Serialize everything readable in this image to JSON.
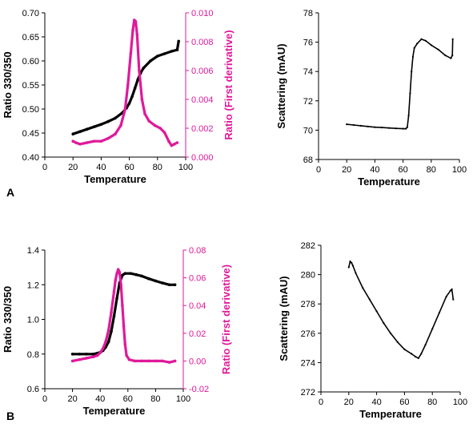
{
  "colors": {
    "primary": "#000000",
    "derivative": "#e0199a"
  },
  "panel_letters": {
    "a": "A",
    "b": "B"
  },
  "chart_data": [
    {
      "id": "A-fluorescence",
      "type": "scatter",
      "xlabel": "Temperature",
      "ylabel": "Ratio 330/350",
      "y2label": "Ratio (First derivative)",
      "xlim": [
        0,
        100
      ],
      "ylim": [
        0.4,
        0.7
      ],
      "y2lim": [
        0.0,
        0.01
      ],
      "xticks": [
        "0",
        "20",
        "40",
        "60",
        "80",
        "100"
      ],
      "yticks": [
        "0.40",
        "0.45",
        "0.50",
        "0.55",
        "0.60",
        "0.65",
        "0.70"
      ],
      "y2ticks": [
        "0.000",
        "0.002",
        "0.004",
        "0.006",
        "0.008",
        "0.010"
      ],
      "series": [
        {
          "axis": "left",
          "color": "#000000",
          "points": [
            [
              20,
              0.448
            ],
            [
              25,
              0.453
            ],
            [
              30,
              0.458
            ],
            [
              35,
              0.463
            ],
            [
              40,
              0.468
            ],
            [
              45,
              0.474
            ],
            [
              50,
              0.481
            ],
            [
              55,
              0.492
            ],
            [
              58,
              0.502
            ],
            [
              60,
              0.512
            ],
            [
              62,
              0.526
            ],
            [
              64,
              0.543
            ],
            [
              66,
              0.561
            ],
            [
              68,
              0.575
            ],
            [
              70,
              0.585
            ],
            [
              75,
              0.6
            ],
            [
              80,
              0.61
            ],
            [
              85,
              0.615
            ],
            [
              90,
              0.62
            ],
            [
              94,
              0.623
            ],
            [
              95,
              0.641
            ]
          ]
        },
        {
          "axis": "right",
          "color": "#e0199a",
          "points": [
            [
              20,
              0.0011
            ],
            [
              22,
              0.001
            ],
            [
              25,
              0.0009
            ],
            [
              30,
              0.001
            ],
            [
              35,
              0.0011
            ],
            [
              40,
              0.0011
            ],
            [
              45,
              0.0013
            ],
            [
              50,
              0.0016
            ],
            [
              54,
              0.0022
            ],
            [
              57,
              0.0033
            ],
            [
              59,
              0.005
            ],
            [
              61,
              0.0072
            ],
            [
              62.5,
              0.0088
            ],
            [
              63.5,
              0.0095
            ],
            [
              64.5,
              0.0094
            ],
            [
              65.5,
              0.0085
            ],
            [
              67,
              0.006
            ],
            [
              69,
              0.004
            ],
            [
              71,
              0.003
            ],
            [
              74,
              0.0025
            ],
            [
              78,
              0.0022
            ],
            [
              82,
              0.002
            ],
            [
              85,
              0.0017
            ],
            [
              88,
              0.0011
            ],
            [
              90,
              0.0008
            ],
            [
              92,
              0.0009
            ],
            [
              94,
              0.001
            ]
          ]
        }
      ]
    },
    {
      "id": "A-scattering",
      "type": "line",
      "xlabel": "Temperature",
      "ylabel": "Scattering (mAU)",
      "xlim": [
        0,
        100
      ],
      "ylim": [
        68,
        78
      ],
      "xticks": [
        "0",
        "20",
        "40",
        "60",
        "80",
        "100"
      ],
      "yticks": [
        "68",
        "70",
        "72",
        "74",
        "76",
        "78"
      ],
      "series": [
        {
          "color": "#000000",
          "points": [
            [
              20,
              70.4
            ],
            [
              25,
              70.35
            ],
            [
              30,
              70.3
            ],
            [
              35,
              70.25
            ],
            [
              40,
              70.2
            ],
            [
              45,
              70.18
            ],
            [
              50,
              70.15
            ],
            [
              55,
              70.12
            ],
            [
              60,
              70.1
            ],
            [
              62,
              70.1
            ],
            [
              63,
              70.2
            ],
            [
              64,
              71.0
            ],
            [
              65,
              72.5
            ],
            [
              66,
              74.0
            ],
            [
              67,
              75.0
            ],
            [
              68,
              75.6
            ],
            [
              70,
              75.9
            ],
            [
              73,
              76.2
            ],
            [
              76,
              76.1
            ],
            [
              80,
              75.8
            ],
            [
              85,
              75.5
            ],
            [
              90,
              75.1
            ],
            [
              94,
              74.9
            ],
            [
              95,
              75.1
            ],
            [
              95.3,
              76.2
            ]
          ]
        }
      ]
    },
    {
      "id": "B-fluorescence",
      "type": "scatter",
      "xlabel": "Temperature",
      "ylabel": "Ratio 330/350",
      "y2label": "Ratio (First derivative)",
      "xlim": [
        0,
        100
      ],
      "ylim": [
        0.6,
        1.4
      ],
      "y2lim": [
        -0.02,
        0.08
      ],
      "xticks": [
        "0",
        "20",
        "40",
        "60",
        "80",
        "100"
      ],
      "yticks": [
        "0.6",
        "0.8",
        "1.0",
        "1.2",
        "1.4"
      ],
      "y2ticks": [
        "-0.02",
        "0.00",
        "0.02",
        "0.04",
        "0.06",
        "0.08"
      ],
      "series": [
        {
          "axis": "left",
          "color": "#000000",
          "points": [
            [
              20,
              0.8
            ],
            [
              25,
              0.8
            ],
            [
              30,
              0.8
            ],
            [
              35,
              0.8
            ],
            [
              38,
              0.805
            ],
            [
              40,
              0.81
            ],
            [
              42,
              0.82
            ],
            [
              44,
              0.84
            ],
            [
              46,
              0.87
            ],
            [
              48,
              0.93
            ],
            [
              50,
              1.02
            ],
            [
              52,
              1.12
            ],
            [
              54,
              1.21
            ],
            [
              56,
              1.255
            ],
            [
              58,
              1.265
            ],
            [
              62,
              1.265
            ],
            [
              66,
              1.258
            ],
            [
              70,
              1.25
            ],
            [
              75,
              1.235
            ],
            [
              80,
              1.222
            ],
            [
              85,
              1.21
            ],
            [
              90,
              1.2
            ],
            [
              94,
              1.2
            ]
          ]
        },
        {
          "axis": "right",
          "color": "#e0199a",
          "points": [
            [
              20,
              0.0
            ],
            [
              25,
              0.001
            ],
            [
              30,
              0.002
            ],
            [
              35,
              0.003
            ],
            [
              38,
              0.004
            ],
            [
              40,
              0.006
            ],
            [
              42,
              0.009
            ],
            [
              44,
              0.014
            ],
            [
              46,
              0.022
            ],
            [
              48,
              0.035
            ],
            [
              50,
              0.05
            ],
            [
              51,
              0.058
            ],
            [
              52,
              0.063
            ],
            [
              53,
              0.066
            ],
            [
              54,
              0.064
            ],
            [
              55,
              0.055
            ],
            [
              56,
              0.04
            ],
            [
              57,
              0.025
            ],
            [
              58,
              0.012
            ],
            [
              59,
              0.004
            ],
            [
              61,
              0.001
            ],
            [
              65,
              0.0
            ],
            [
              70,
              0.0
            ],
            [
              75,
              0.0
            ],
            [
              80,
              0.0
            ],
            [
              85,
              0.0
            ],
            [
              90,
              -0.001
            ],
            [
              94,
              0.0
            ]
          ]
        }
      ]
    },
    {
      "id": "B-scattering",
      "type": "line",
      "xlabel": "Temperature",
      "ylabel": "Scattering (mAU)",
      "xlim": [
        0,
        100
      ],
      "ylim": [
        272,
        282
      ],
      "xticks": [
        "0",
        "20",
        "40",
        "60",
        "80",
        "100"
      ],
      "yticks": [
        "272",
        "274",
        "276",
        "278",
        "280",
        "282"
      ],
      "series": [
        {
          "color": "#000000",
          "points": [
            [
              20,
              280.5
            ],
            [
              21,
              280.9
            ],
            [
              22,
              280.8
            ],
            [
              23,
              280.6
            ],
            [
              25,
              280.1
            ],
            [
              30,
              279.1
            ],
            [
              35,
              278.3
            ],
            [
              40,
              277.5
            ],
            [
              45,
              276.7
            ],
            [
              50,
              276.0
            ],
            [
              55,
              275.4
            ],
            [
              60,
              274.9
            ],
            [
              65,
              274.6
            ],
            [
              68,
              274.4
            ],
            [
              70,
              274.3
            ],
            [
              72,
              274.6
            ],
            [
              75,
              275.2
            ],
            [
              80,
              276.3
            ],
            [
              85,
              277.4
            ],
            [
              90,
              278.5
            ],
            [
              93,
              278.9
            ],
            [
              94,
              279.0
            ],
            [
              95,
              278.3
            ]
          ]
        }
      ]
    }
  ]
}
